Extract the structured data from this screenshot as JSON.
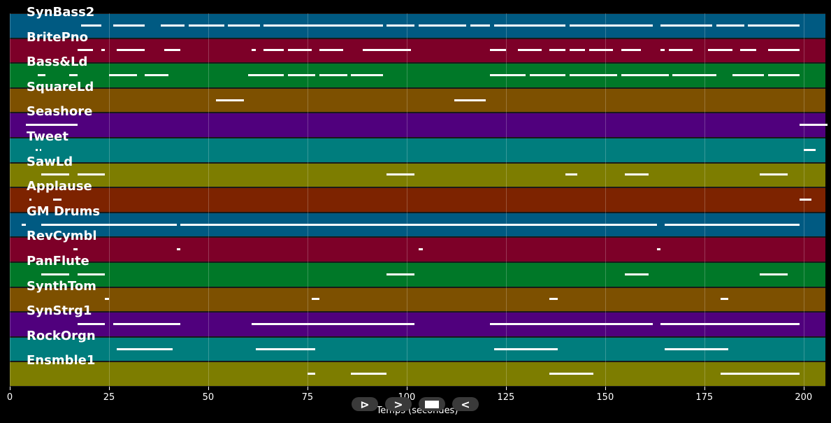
{
  "chart_data": {
    "type": "piano-roll",
    "xlabel": "Temps (secondes)",
    "xlim": [
      0,
      205.5
    ],
    "xticks": [
      0,
      25,
      50,
      75,
      100,
      125,
      150,
      175,
      200
    ],
    "grid": true,
    "tracks": [
      {
        "name": "SynBass2",
        "color": "#005a82",
        "notes": [
          [
            18,
            23,
            0.5
          ],
          [
            26,
            34,
            0.5
          ],
          [
            38,
            44,
            0.5
          ],
          [
            45,
            54,
            0.5
          ],
          [
            55,
            63,
            0.5
          ],
          [
            64,
            76,
            0.5
          ],
          [
            76,
            94,
            0.5
          ],
          [
            95,
            102,
            0.5
          ],
          [
            103,
            115,
            0.5
          ],
          [
            116,
            121,
            0.5
          ],
          [
            122,
            140,
            0.5
          ],
          [
            141,
            148,
            0.5
          ],
          [
            148,
            162,
            0.5
          ],
          [
            164,
            177,
            0.5
          ],
          [
            178,
            185,
            0.5
          ],
          [
            186,
            199,
            0.5
          ]
        ]
      },
      {
        "name": "BritePno",
        "color": "#7d0028",
        "notes": [
          [
            17,
            21,
            0.5
          ],
          [
            23,
            24,
            0.5
          ],
          [
            27,
            31,
            0.5
          ],
          [
            31,
            34,
            0.5
          ],
          [
            39,
            41,
            0.5
          ],
          [
            41,
            43,
            0.5
          ],
          [
            61,
            62,
            0.5
          ],
          [
            64,
            69,
            0.5
          ],
          [
            70,
            76,
            0.5
          ],
          [
            78,
            84,
            0.5
          ],
          [
            89,
            92,
            0.5
          ],
          [
            92,
            95,
            0.5
          ],
          [
            95,
            101,
            0.5
          ],
          [
            121,
            125,
            0.5
          ],
          [
            128,
            134,
            0.5
          ],
          [
            136,
            140,
            0.5
          ],
          [
            141,
            145,
            0.5
          ],
          [
            146,
            152,
            0.5
          ],
          [
            154,
            157,
            0.5
          ],
          [
            157,
            159,
            0.5
          ],
          [
            164,
            165,
            0.5
          ],
          [
            166,
            172,
            0.5
          ],
          [
            176,
            182,
            0.5
          ],
          [
            184,
            188,
            0.5
          ],
          [
            191,
            196,
            0.5
          ],
          [
            196,
            199,
            0.5
          ]
        ]
      },
      {
        "name": "Bass&Ld",
        "color": "#007828",
        "notes": [
          [
            7,
            9,
            0.5
          ],
          [
            15,
            17,
            0.5
          ],
          [
            25,
            32,
            0.5
          ],
          [
            34,
            40,
            0.5
          ],
          [
            60,
            69,
            0.5
          ],
          [
            70,
            77,
            0.5
          ],
          [
            78,
            85,
            0.5
          ],
          [
            86,
            94,
            0.5
          ],
          [
            121,
            130,
            0.5
          ],
          [
            131,
            140,
            0.5
          ],
          [
            141,
            153,
            0.5
          ],
          [
            154,
            166,
            0.5
          ],
          [
            167,
            178,
            0.5
          ],
          [
            182,
            190,
            0.5
          ],
          [
            191,
            199,
            0.5
          ]
        ]
      },
      {
        "name": "SquareLd",
        "color": "#7d5000",
        "notes": [
          [
            52,
            59,
            0.5
          ],
          [
            112,
            120,
            0.5
          ]
        ]
      },
      {
        "name": "Seashore",
        "color": "#50007d",
        "notes": [
          [
            4,
            17,
            0.5
          ],
          [
            199,
            206,
            0.5
          ]
        ]
      },
      {
        "name": "Tweet",
        "color": "#007d7d",
        "notes": [
          [
            6.5,
            7,
            0.5
          ],
          [
            7.5,
            8,
            0.5
          ],
          [
            200,
            200.5,
            0.5
          ],
          [
            200.5,
            203,
            0.5
          ]
        ]
      },
      {
        "name": "SawLd",
        "color": "#7d7d00",
        "notes": [
          [
            8,
            15,
            0.5
          ],
          [
            17,
            24,
            0.5
          ],
          [
            95,
            102,
            0.5
          ],
          [
            140,
            143,
            0.5
          ],
          [
            155,
            161,
            0.5
          ],
          [
            189,
            196,
            0.5
          ]
        ]
      },
      {
        "name": "Applause",
        "color": "#7d2300",
        "notes": [
          [
            5,
            5.5,
            0.5
          ],
          [
            11,
            13,
            0.5
          ],
          [
            199,
            202,
            0.5
          ]
        ]
      },
      {
        "name": "GM Drums",
        "color": "#005a82",
        "notes": [
          [
            3,
            4,
            0.5
          ],
          [
            8,
            42,
            0.5
          ],
          [
            43,
            60,
            0.5
          ],
          [
            60,
            61,
            0.5
          ],
          [
            61,
            121,
            0.5
          ],
          [
            121,
            163,
            0.5
          ],
          [
            165,
            199,
            0.5
          ]
        ]
      },
      {
        "name": "RevCymbl",
        "color": "#7d0028",
        "notes": [
          [
            16,
            17,
            0.5
          ],
          [
            42,
            43,
            0.5
          ],
          [
            103,
            104,
            0.5
          ],
          [
            163,
            164,
            0.5
          ]
        ]
      },
      {
        "name": "PanFlute",
        "color": "#007828",
        "notes": [
          [
            8,
            15,
            0.5
          ],
          [
            17,
            24,
            0.5
          ],
          [
            95,
            102,
            0.5
          ],
          [
            155,
            161,
            0.5
          ],
          [
            189,
            196,
            0.5
          ]
        ]
      },
      {
        "name": "SynthTom",
        "color": "#7d5000",
        "notes": [
          [
            24,
            25,
            0.5
          ],
          [
            76,
            78,
            0.5
          ],
          [
            136,
            138,
            0.5
          ],
          [
            179,
            181,
            0.5
          ]
        ]
      },
      {
        "name": "SynStrg1",
        "color": "#50007d",
        "notes": [
          [
            17,
            24,
            0.5
          ],
          [
            26,
            43,
            0.5
          ],
          [
            61,
            102,
            0.5
          ],
          [
            121,
            162,
            0.5
          ],
          [
            164,
            199,
            0.5
          ]
        ]
      },
      {
        "name": "RockOrgn",
        "color": "#007d7d",
        "notes": [
          [
            27,
            41,
            0.5
          ],
          [
            62,
            77,
            0.5
          ],
          [
            122,
            138,
            0.5
          ],
          [
            165,
            181,
            0.5
          ]
        ]
      },
      {
        "name": "Ensmble1",
        "color": "#7d7d00",
        "notes": [
          [
            75,
            77,
            0.5
          ],
          [
            86,
            95,
            0.5
          ],
          [
            136,
            147,
            0.5
          ],
          [
            179,
            199,
            0.5
          ]
        ]
      }
    ]
  },
  "controls": {
    "play_label": "⊳",
    "next_label": ">",
    "stop_label": "",
    "prev_label": "<"
  }
}
